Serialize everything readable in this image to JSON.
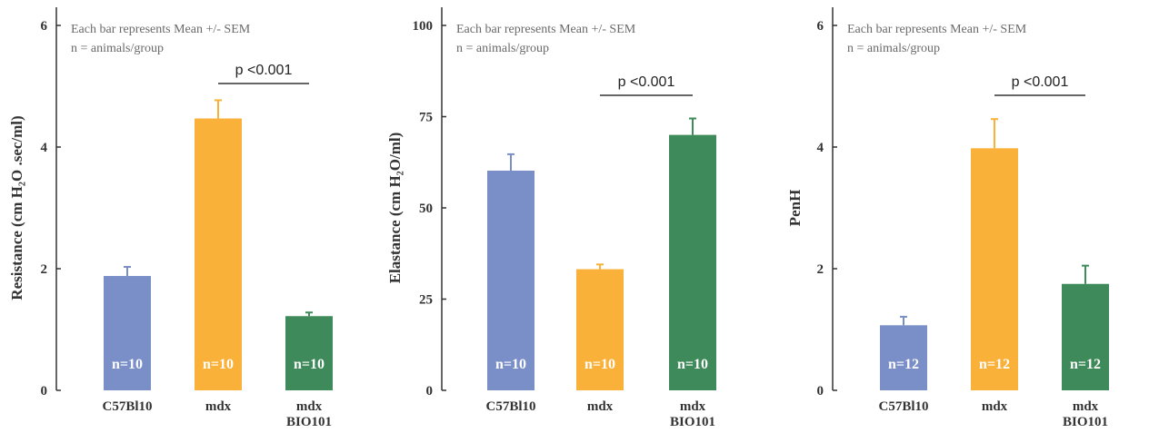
{
  "chart_data": [
    {
      "type": "bar",
      "categories": [
        "C57Bl10",
        "mdx",
        "mdx BIO101"
      ],
      "values": [
        1.88,
        4.47,
        1.22
      ],
      "errors": [
        0.15,
        0.3,
        0.06
      ],
      "n_labels": [
        "n=10",
        "n=10",
        "n=10"
      ],
      "colors": [
        "#7a8fc7",
        "#f9b13a",
        "#3f8a5a"
      ],
      "ylabel": "Resistance (cm H₂O .sec/ml)",
      "ylim": [
        0,
        6
      ],
      "yticks": [
        0,
        2,
        4,
        6
      ],
      "annotation": [
        "Each bar represents Mean +/- SEM",
        "n = animals/group"
      ],
      "significance": {
        "label": "p <0.001",
        "from": "mdx",
        "to": "mdx BIO101"
      }
    },
    {
      "type": "bar",
      "categories": [
        "C57Bl10",
        "mdx",
        "mdx BIO101"
      ],
      "values": [
        60.2,
        33.2,
        70.0
      ],
      "errors": [
        4.5,
        1.3,
        4.5
      ],
      "n_labels": [
        "n=10",
        "n=10",
        "n=10"
      ],
      "colors": [
        "#7a8fc7",
        "#f9b13a",
        "#3f8a5a"
      ],
      "ylabel": "Elastance (cm H₂O/ml)",
      "ylim": [
        0,
        100
      ],
      "yticks": [
        0,
        25,
        50,
        75,
        100
      ],
      "annotation": [
        "Each bar represents Mean +/- SEM",
        "n = animals/group"
      ],
      "significance": {
        "label": "p <0.001",
        "from": "mdx",
        "to": "mdx BIO101"
      }
    },
    {
      "type": "bar",
      "categories": [
        "C57Bl10",
        "mdx",
        "mdx BIO101"
      ],
      "values": [
        1.07,
        3.98,
        1.75
      ],
      "errors": [
        0.14,
        0.48,
        0.3
      ],
      "n_labels": [
        "n=12",
        "n=12",
        "n=12"
      ],
      "colors": [
        "#7a8fc7",
        "#f9b13a",
        "#3f8a5a"
      ],
      "ylabel": "PenH",
      "ylim": [
        0,
        6
      ],
      "yticks": [
        0,
        2,
        4,
        6
      ],
      "annotation": [
        "Each bar represents Mean +/- SEM",
        "n = animals/group"
      ],
      "significance": {
        "label": "p <0.001",
        "from": "mdx",
        "to": "mdx BIO101"
      }
    }
  ]
}
